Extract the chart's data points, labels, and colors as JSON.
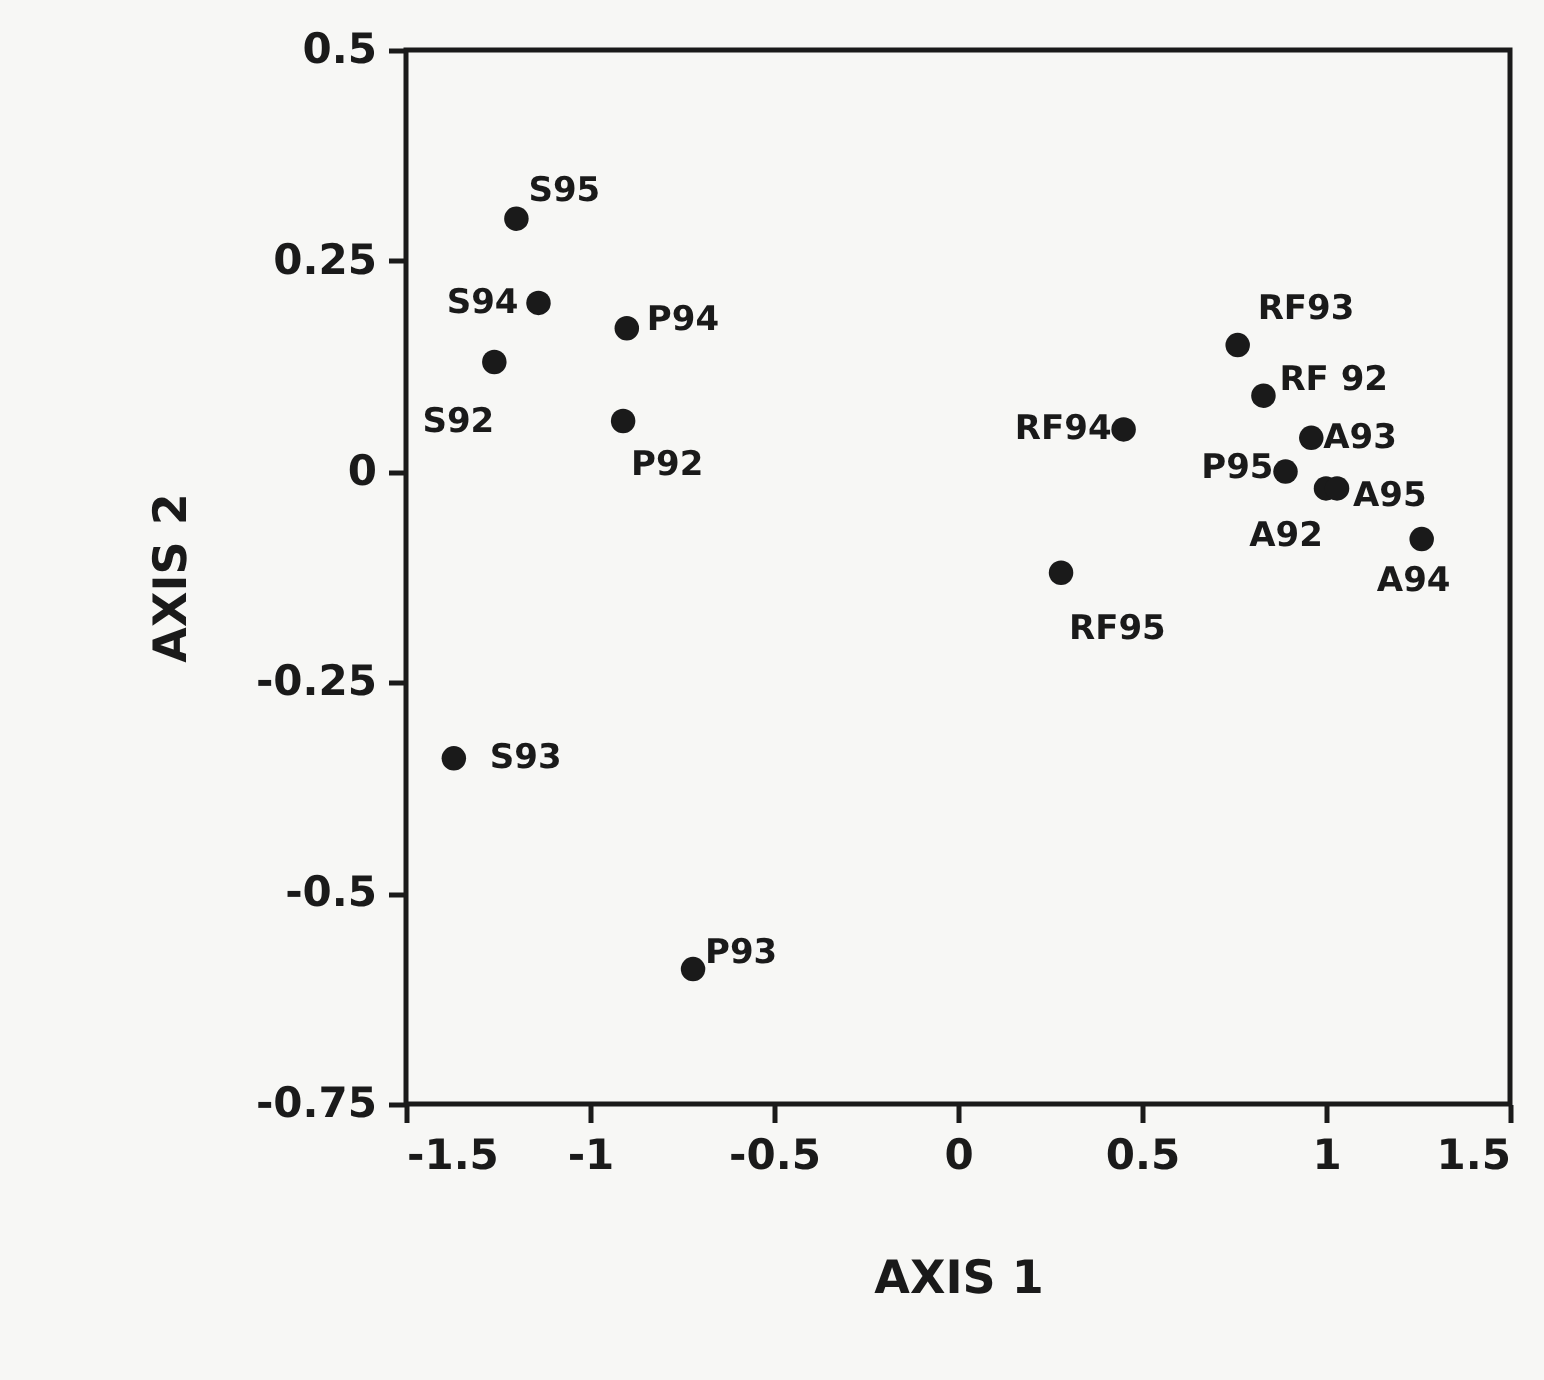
{
  "chart_data": {
    "type": "scatter",
    "xlabel": "AXIS 1",
    "ylabel": "AXIS 2",
    "x": [
      -1.2,
      -1.14,
      -1.26,
      -0.9,
      -0.91,
      -1.37,
      -0.72,
      0.76,
      0.83,
      0.45,
      0.96,
      0.89,
      1.0,
      1.03,
      1.26,
      0.28
    ],
    "values": [
      0.3,
      0.2,
      0.13,
      0.17,
      0.06,
      -0.34,
      -0.59,
      0.15,
      0.09,
      0.05,
      0.04,
      0.0,
      -0.02,
      -0.02,
      -0.08,
      -0.12
    ],
    "color": "#1a1a1a",
    "marker": "circle",
    "xlim": [
      -1.5,
      1.5
    ],
    "xticks": [
      -1.5,
      -1,
      -0.5,
      0,
      0.5,
      1,
      1.5
    ],
    "ylim": [
      -0.75,
      0.5
    ],
    "yticks": [
      -0.75,
      -0.5,
      -0.25,
      0,
      0.25,
      0.5
    ],
    "grid": false,
    "annotations": [
      {
        "text": "S95",
        "x": -1.2,
        "y": 0.3
      },
      {
        "text": "S94",
        "x": -1.14,
        "y": 0.2
      },
      {
        "text": "S92",
        "x": -1.26,
        "y": 0.13
      },
      {
        "text": "P94",
        "x": -0.9,
        "y": 0.17
      },
      {
        "text": "P92",
        "x": -0.91,
        "y": 0.06
      },
      {
        "text": "S93",
        "x": -1.37,
        "y": -0.34
      },
      {
        "text": "P93",
        "x": -0.72,
        "y": -0.59
      },
      {
        "text": "RF93",
        "x": 0.76,
        "y": 0.15
      },
      {
        "text": "RF 92",
        "x": 0.83,
        "y": 0.09
      },
      {
        "text": "RF94",
        "x": 0.45,
        "y": 0.05
      },
      {
        "text": "A93",
        "x": 0.96,
        "y": 0.04
      },
      {
        "text": "P95",
        "x": 0.89,
        "y": 0.0
      },
      {
        "text": "A92",
        "x": 1.0,
        "y": -0.02
      },
      {
        "text": "A95",
        "x": 1.03,
        "y": -0.02
      },
      {
        "text": "A94",
        "x": 1.26,
        "y": -0.08
      },
      {
        "text": "RF95",
        "x": 0.28,
        "y": -0.12
      }
    ]
  }
}
